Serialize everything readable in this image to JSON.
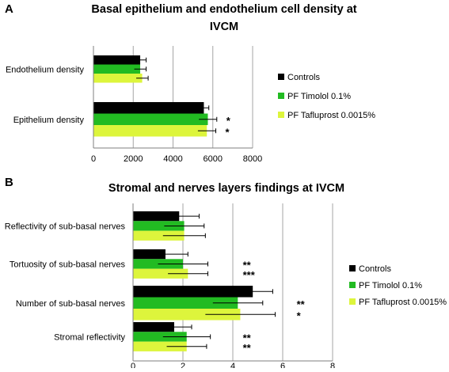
{
  "colors": {
    "controls": "#000000",
    "timolol": "#22bb22",
    "tafluprost": "#ddf53c",
    "gridline": "#a6a6a6",
    "axis": "#7f7f7f"
  },
  "chart_data": [
    {
      "panel_label": "A",
      "type": "bar",
      "orientation": "horizontal",
      "title_line1": "Basal epithelium and endothelium cell density at",
      "title_line2": "IVCM",
      "categories": [
        "Endothelium density",
        "Epithelium density"
      ],
      "series": [
        {
          "name": "Controls",
          "color_key": "controls",
          "values": [
            2350,
            5550
          ],
          "errors": [
            300,
            250
          ]
        },
        {
          "name": "PF Timolol 0.1%",
          "color_key": "timolol",
          "values": [
            2350,
            5750
          ],
          "errors": [
            300,
            450
          ]
        },
        {
          "name": "PF Tafluprost 0.0015%",
          "color_key": "tafluprost",
          "values": [
            2450,
            5700
          ],
          "errors": [
            300,
            450
          ]
        }
      ],
      "annotations": [
        {
          "category": 1,
          "series": 1,
          "text": "*"
        },
        {
          "category": 1,
          "series": 2,
          "text": "*"
        }
      ],
      "xlim": [
        0,
        8000
      ],
      "xticks": [
        "0",
        "2000",
        "4000",
        "6000",
        "8000"
      ],
      "legend_position": "right",
      "grid": "vertical"
    },
    {
      "panel_label": "B",
      "type": "bar",
      "orientation": "horizontal",
      "title": "Stromal and nerves layers findings at IVCM",
      "categories": [
        "Reflectivity of sub-basal nerves",
        "Tortuosity of sub-basal nerves",
        "Number of sub-basal nerves",
        "Stromal reflectivity"
      ],
      "series": [
        {
          "name": "Controls",
          "color_key": "controls",
          "values": [
            1.85,
            1.3,
            4.8,
            1.65
          ],
          "errors": [
            0.8,
            0.9,
            0.8,
            0.7
          ]
        },
        {
          "name": "PF Timolol 0.1%",
          "color_key": "timolol",
          "values": [
            2.05,
            2.0,
            4.2,
            2.15
          ],
          "errors": [
            0.8,
            1.0,
            1.0,
            0.95
          ]
        },
        {
          "name": "PF Tafluprost 0.0015%",
          "color_key": "tafluprost",
          "values": [
            2.05,
            2.2,
            4.3,
            2.15
          ],
          "errors": [
            0.85,
            0.8,
            1.4,
            0.8
          ]
        }
      ],
      "annotations": [
        {
          "category": 1,
          "series": 1,
          "text": "**"
        },
        {
          "category": 1,
          "series": 2,
          "text": "***"
        },
        {
          "category": 2,
          "series": 1,
          "text": "**"
        },
        {
          "category": 2,
          "series": 2,
          "text": "*"
        },
        {
          "category": 3,
          "series": 1,
          "text": "**"
        },
        {
          "category": 3,
          "series": 2,
          "text": "**"
        }
      ],
      "xlim": [
        0,
        8
      ],
      "xticks": [
        "0",
        "2",
        "4",
        "6",
        "8"
      ],
      "legend_position": "right",
      "grid": "vertical"
    }
  ]
}
